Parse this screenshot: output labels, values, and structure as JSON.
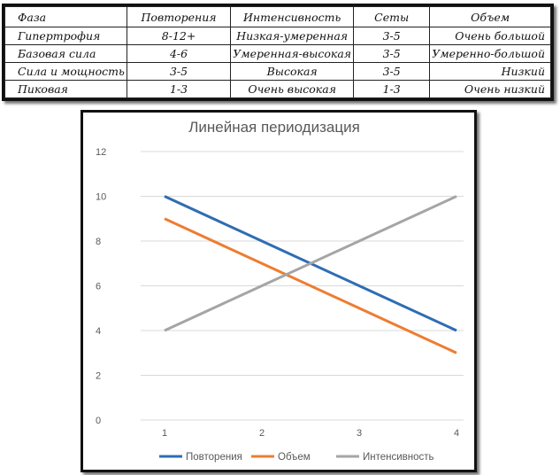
{
  "table": {
    "headers": [
      "Фаза",
      "Повторения",
      "Интенсивность",
      "Сеты",
      "Объем"
    ],
    "rows": [
      [
        "Гипертрофия",
        "8-12+",
        "Низкая-умеренная",
        "3-5",
        "Очень большой"
      ],
      [
        "Базовая сила",
        "4-6",
        "Умеренная-высокая",
        "3-5",
        "Умеренно-большой"
      ],
      [
        "Сила и мощность",
        "3-5",
        "Высокая",
        "3-5",
        "Низкий"
      ],
      [
        "Пиковая",
        "1-3",
        "Очень высокая",
        "1-3",
        "Очень низкий"
      ]
    ]
  },
  "chart_data": {
    "type": "line",
    "title": "Линейная периодизация",
    "x": [
      1,
      2,
      3,
      4
    ],
    "ylim": [
      0,
      12
    ],
    "yticks": [
      0,
      2,
      4,
      6,
      8,
      10,
      12
    ],
    "xticks": [
      "1",
      "2",
      "3",
      "4"
    ],
    "grid": true,
    "legend_position": "bottom",
    "series": [
      {
        "name": "Повторения",
        "color": "#2e6db4",
        "values": [
          10,
          8,
          6,
          4
        ]
      },
      {
        "name": "Объем",
        "color": "#ed7d31",
        "values": [
          9,
          7,
          5,
          3
        ]
      },
      {
        "name": "Интенсивность",
        "color": "#a5a5a5",
        "values": [
          4,
          6,
          8,
          10
        ]
      }
    ]
  }
}
